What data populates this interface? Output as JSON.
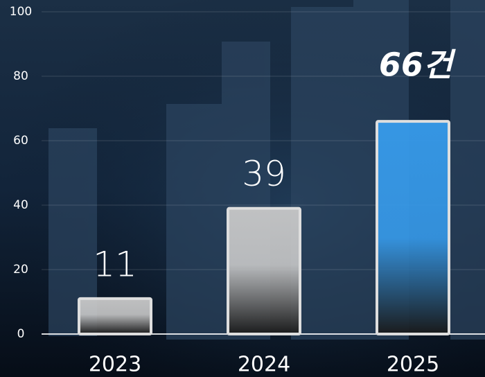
{
  "chart_data": {
    "type": "bar",
    "categories": [
      "2023",
      "2024",
      "2025"
    ],
    "values": [
      11,
      39,
      66
    ],
    "value_labels": [
      "11",
      "39",
      "66건"
    ],
    "colors": [
      "#c8c8c8",
      "#c8c8c8",
      "#379beb"
    ],
    "label_colors": [
      "#ffffff",
      "#ffffff",
      "#f7f200"
    ],
    "ylim": [
      0,
      100
    ],
    "yticks": [
      0,
      20,
      40,
      60,
      80,
      100
    ],
    "grid": true
  }
}
